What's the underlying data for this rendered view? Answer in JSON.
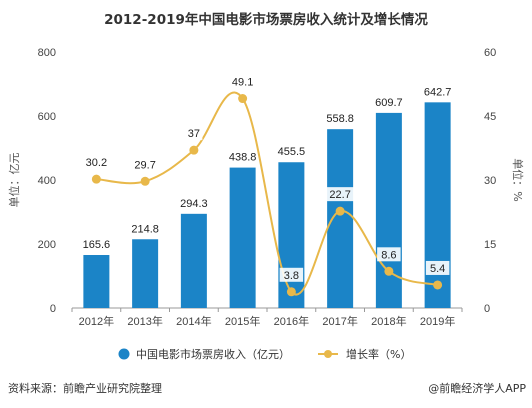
{
  "chart_data": {
    "type": "bar",
    "title": "2012-2019年中国电影市场票房收入统计及增长情况",
    "categories": [
      "2012年",
      "2013年",
      "2014年",
      "2015年",
      "2016年",
      "2017年",
      "2018年",
      "2019年"
    ],
    "series": [
      {
        "name": "中国电影市场票房收入（亿元）",
        "type": "bar",
        "axis": "left",
        "color": "#1b84c7",
        "values": [
          165.6,
          214.8,
          294.3,
          438.8,
          455.5,
          558.8,
          609.7,
          642.7
        ],
        "labels": [
          "165.6",
          "214.8",
          "294.3",
          "438.8",
          "455.5",
          "558.8",
          "609.7",
          "642.7"
        ]
      },
      {
        "name": "增长率（%）",
        "type": "line",
        "axis": "right",
        "color": "#e8b84a",
        "values": [
          30.2,
          29.7,
          37,
          49.1,
          3.8,
          22.7,
          8.6,
          5.4
        ],
        "labels": [
          "30.2",
          "29.7",
          "37",
          "49.1",
          "3.8",
          "22.7",
          "8.6",
          "5.4"
        ]
      }
    ],
    "ylabel": "单位：亿元",
    "ylabel_right": "单位：%",
    "ylim": [
      0,
      800
    ],
    "ylim_right": [
      0,
      60
    ],
    "yticks": [
      0,
      200,
      400,
      600,
      800
    ],
    "yticks_right": [
      0,
      15,
      30,
      45,
      60
    ],
    "grid": false,
    "legend_position": "bottom"
  },
  "footer": {
    "source": "资料来源：前瞻产业研究院整理",
    "brand": "@前瞻经济学人APP"
  }
}
